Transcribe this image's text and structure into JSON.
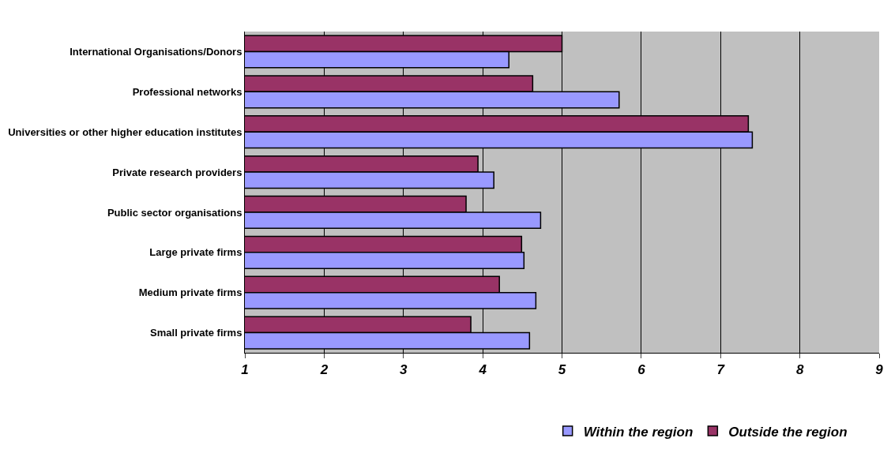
{
  "chart_data": {
    "type": "bar",
    "orientation": "horizontal",
    "categories": [
      "International Organisations/Donors",
      "Professional networks",
      "Universities or other higher education institutes",
      "Private research providers",
      "Public sector organisations",
      "Large private firms",
      "Medium private firms",
      "Small private firms"
    ],
    "series": [
      {
        "name": "Within the region",
        "color": "#9999ff",
        "values": [
          4.33,
          5.72,
          7.4,
          4.14,
          4.73,
          4.52,
          4.67,
          4.59
        ]
      },
      {
        "name": "Outside the region",
        "color": "#993366",
        "values": [
          5.0,
          4.63,
          7.35,
          3.94,
          3.79,
          4.49,
          4.21,
          3.85
        ]
      }
    ],
    "xlim": [
      1,
      9
    ],
    "xticks": [
      1,
      2,
      3,
      4,
      5,
      6,
      7,
      8,
      9
    ],
    "grid": "x",
    "legend": "bottom"
  }
}
